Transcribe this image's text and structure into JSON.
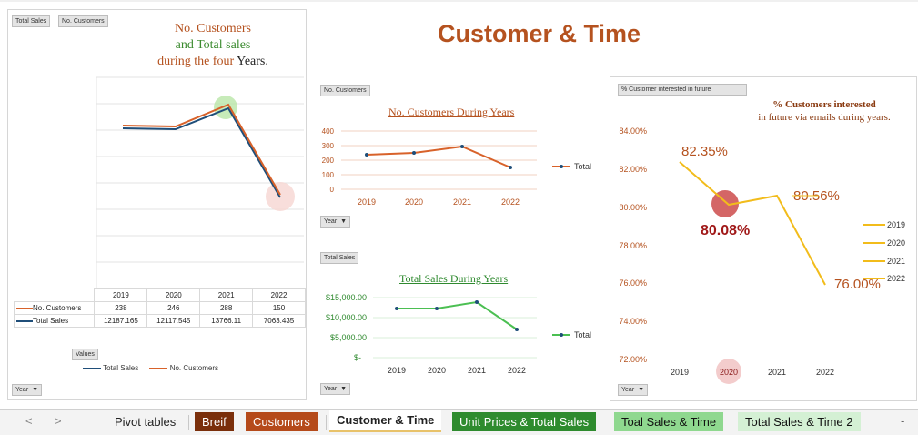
{
  "dashboard_title": "Customer & Time",
  "left_panel": {
    "buttons": [
      "Total Sales",
      "No. Customers"
    ],
    "title_parts": [
      "No. Customers",
      "and Total sales",
      "during the four",
      "Years."
    ],
    "years": [
      "2019",
      "2020",
      "2021",
      "2022"
    ],
    "table": [
      {
        "label": "No. Customers",
        "values": [
          "238",
          "246",
          "288",
          "150"
        ]
      },
      {
        "label": "Total Sales",
        "values": [
          "12187.165",
          "12117.545",
          "13766.11",
          "7063.435"
        ]
      }
    ],
    "values_button": "Values",
    "legend": [
      "Total Sales",
      "No. Customers"
    ],
    "year_button": "Year"
  },
  "customers_chart": {
    "button": "No. Customers",
    "title": "No. Customers During Years",
    "year_button": "Year",
    "legend": "Total"
  },
  "sales_chart": {
    "button": "Total Sales",
    "title": "Total Sales During Years",
    "year_button": "Year",
    "legend": "Total"
  },
  "interest_chart": {
    "button": "% Customer interested in future",
    "title_line1": "% Customers interested",
    "title_line2": "in future via emails during years.",
    "labels": [
      "82.35%",
      "80.08%",
      "80.56%",
      "76.00%"
    ],
    "legend": [
      "2019",
      "2020",
      "2021",
      "2022"
    ],
    "year_button": "Year"
  },
  "chart_data": [
    {
      "type": "line",
      "title": "No. Customers and Total sales during the four Years.",
      "categories": [
        "2019",
        "2020",
        "2021",
        "2022"
      ],
      "series": [
        {
          "name": "No. Customers",
          "values": [
            238,
            246,
            288,
            150
          ]
        },
        {
          "name": "Total Sales",
          "values": [
            12187.165,
            12117.545,
            13766.11,
            7063.435
          ]
        }
      ]
    },
    {
      "type": "line",
      "title": "No. Customers During Years",
      "categories": [
        "2019",
        "2020",
        "2021",
        "2022"
      ],
      "series": [
        {
          "name": "Total",
          "values": [
            238,
            246,
            288,
            150
          ]
        }
      ],
      "yticks": [
        "400",
        "300",
        "200",
        "100",
        "0"
      ],
      "ylim": [
        0,
        400
      ]
    },
    {
      "type": "line",
      "title": "Total Sales During Years",
      "categories": [
        "2019",
        "2020",
        "2021",
        "2022"
      ],
      "series": [
        {
          "name": "Total",
          "values": [
            12187.165,
            12117.545,
            13766.11,
            7063.435
          ]
        }
      ],
      "yticks": [
        "$15,000.00",
        "$10,000.00",
        "$5,000.00",
        "$-"
      ],
      "ylim": [
        0,
        15000
      ]
    },
    {
      "type": "line",
      "title": "% Customers interested in future via emails during years.",
      "categories": [
        "2019",
        "2020",
        "2021",
        "2022"
      ],
      "series": [
        {
          "name": "",
          "values": [
            82.35,
            80.08,
            80.56,
            76.0
          ]
        }
      ],
      "yticks": [
        "84.00%",
        "82.00%",
        "80.00%",
        "78.00%",
        "76.00%",
        "74.00%",
        "72.00%"
      ],
      "ylim": [
        72,
        84
      ]
    }
  ],
  "tabs": {
    "nav_prev": "<",
    "nav_next": ">",
    "items": [
      "Pivot tables",
      "Breif",
      "Customers",
      "Customer & Time",
      "Unit Prices & Total Sales",
      "Toal Sales & Time",
      "Total Sales & Time 2"
    ],
    "more": "-"
  },
  "colors": {
    "title": "#b5521f",
    "orange": "#d8622a",
    "navy": "#1f4e79",
    "green": "#4bbf52",
    "gold": "#f2bc1b",
    "tab_brown": "#7a2f0b",
    "tab_rust": "#b54a1a",
    "tab_green": "#2e8b2e",
    "tab_lightgreen": "#8fd88f",
    "tab_palegreen": "#d4f0d4"
  }
}
